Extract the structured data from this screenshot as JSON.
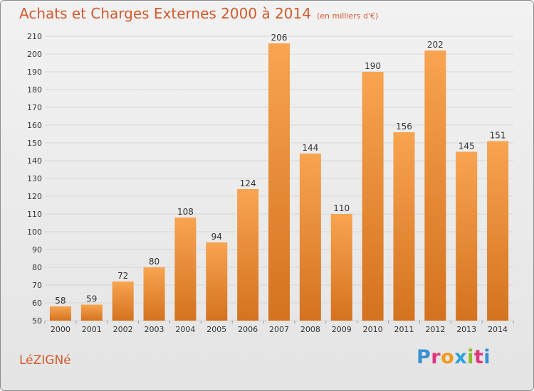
{
  "header": {
    "title": "Achats et Charges Externes 2000 à 2014",
    "unit": "(en milliers d'€)"
  },
  "footer": {
    "commune": "LéZIGNé",
    "brand_letters": [
      "P",
      "r",
      "o",
      "x",
      "i",
      "t",
      "i"
    ],
    "brand_colors": [
      "#3a8fd0",
      "#e0357a",
      "#f29a1c",
      "#2aa3d8",
      "#8dbb2a",
      "#e0357a",
      "#3a8fd0"
    ]
  },
  "colors": {
    "bar_top": "#f8a450",
    "bar_bottom": "#d4721f",
    "grid": "#d6d6d6",
    "axis_text": "#333333"
  },
  "chart_data": {
    "type": "bar",
    "title": "Achats et Charges Externes 2000 à 2014",
    "categories": [
      "2000",
      "2001",
      "2002",
      "2003",
      "2004",
      "2005",
      "2006",
      "2007",
      "2008",
      "2009",
      "2010",
      "2011",
      "2012",
      "2013",
      "2014"
    ],
    "values": [
      58,
      59,
      72,
      80,
      108,
      94,
      124,
      206,
      144,
      110,
      190,
      156,
      202,
      145,
      151
    ],
    "xlabel": "",
    "ylabel": "",
    "ylim": [
      50,
      210
    ],
    "yticks": [
      50,
      60,
      70,
      80,
      90,
      100,
      110,
      120,
      130,
      140,
      150,
      160,
      170,
      180,
      190,
      200,
      210
    ],
    "grid": true,
    "legend": "none"
  }
}
